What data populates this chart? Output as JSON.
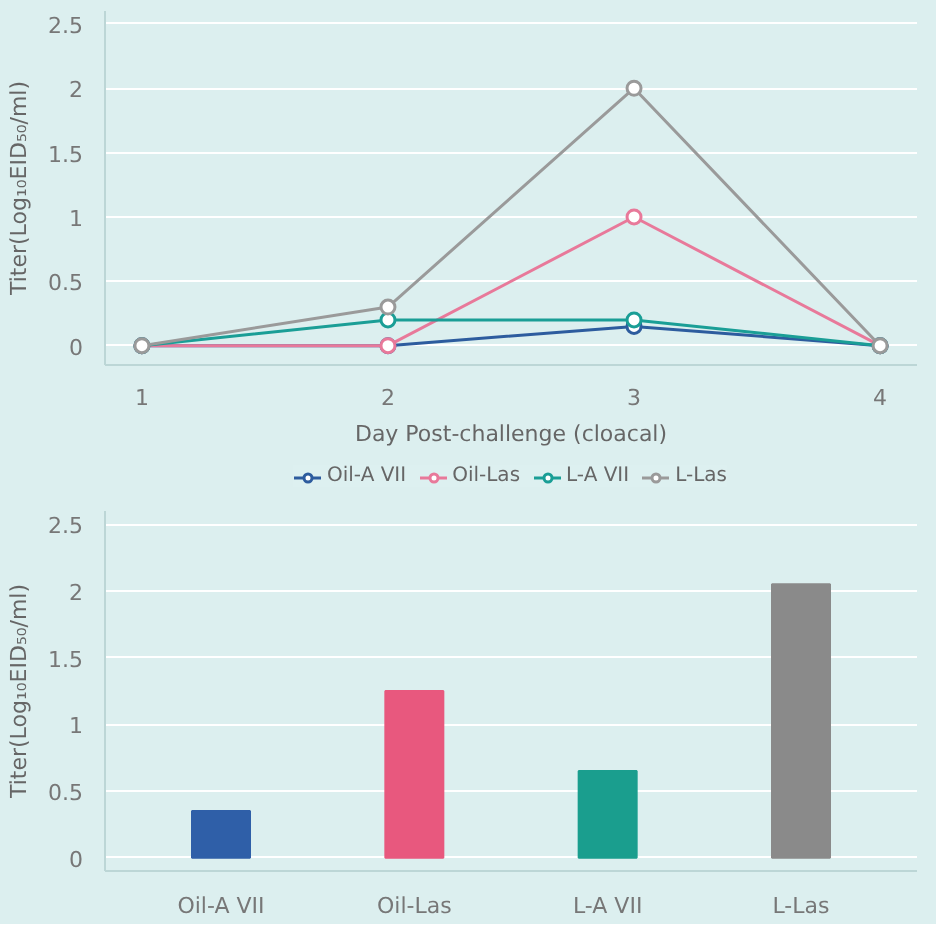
{
  "chart_data": [
    {
      "type": "line",
      "xlabel": "Day Post-challenge (cloacal)",
      "ylabel": "Titer(Log₁₀EID₅₀/ml)",
      "x": [
        1,
        2,
        3,
        4
      ],
      "xlim": [
        0.85,
        4.15
      ],
      "xticks": [
        1,
        2,
        3,
        4
      ],
      "ylim": [
        -0.15,
        2.6
      ],
      "yticks": [
        0,
        0.5,
        1,
        1.5,
        2,
        2.5
      ],
      "grid": "y",
      "legend": "bottom",
      "marker": "circle",
      "line_style": "solid",
      "series": [
        {
          "name": "Oil-A VII",
          "color": "#2d5c9e",
          "values": [
            0,
            0,
            0.15,
            0
          ]
        },
        {
          "name": "Oil-Las",
          "color": "#e8799a",
          "values": [
            0,
            0,
            1,
            0
          ]
        },
        {
          "name": "L-A VII",
          "color": "#1a9e96",
          "values": [
            0,
            0.2,
            0.2,
            0
          ]
        },
        {
          "name": "L-Las",
          "color": "#9a9a9a",
          "values": [
            0,
            0.3,
            2,
            0
          ]
        }
      ]
    },
    {
      "type": "bar",
      "ylabel": "Titer(Log₁₀EID₅₀/ml)",
      "categories": [
        "Oil-A VII",
        "Oil-Las",
        "L-A VII",
        "L-Las"
      ],
      "values": [
        0.35,
        1.25,
        0.65,
        2.05
      ],
      "colors": [
        "#2f5fa8",
        "#e8587e",
        "#1a9e8e",
        "#8a8a8a"
      ],
      "ylim": [
        -0.1,
        2.6
      ],
      "yticks": [
        0,
        0.5,
        1,
        1.5,
        2,
        2.5
      ],
      "grid": "y"
    }
  ]
}
